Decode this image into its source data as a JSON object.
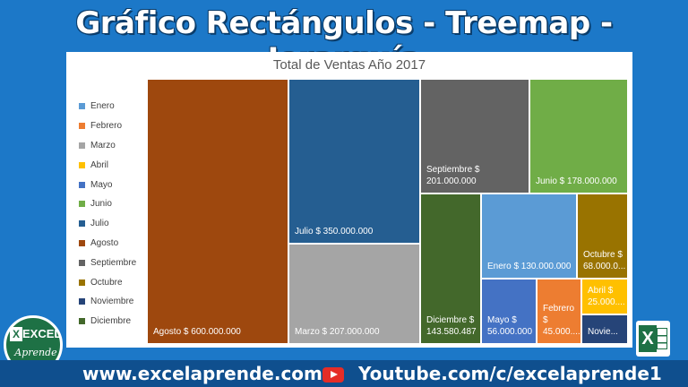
{
  "banner": {
    "title": "Gráfico Rectángulos - Treemap - Jerarquía"
  },
  "footer": {
    "website": "www.excelaprende.com",
    "youtube": "Youtube.com/c/excelaprende1"
  },
  "logos": {
    "left_line1": "EXCEL",
    "left_line2": "Aprende",
    "left_x": "X",
    "right_x": "X"
  },
  "colors": {
    "page_background": "#1c78c8",
    "footer_background": "#0f4f8e",
    "excel_green": "#1e7145",
    "youtube_red": "#e52d27"
  },
  "chart_data": {
    "type": "treemap",
    "title": "Total de Ventas Año 2017",
    "legend_position": "left",
    "legend": [
      {
        "name": "Enero",
        "color": "#5b9bd5"
      },
      {
        "name": "Febrero",
        "color": "#ed7d31"
      },
      {
        "name": "Marzo",
        "color": "#a5a5a5"
      },
      {
        "name": "Abril",
        "color": "#ffc000"
      },
      {
        "name": "Mayo",
        "color": "#4472c4"
      },
      {
        "name": "Junio",
        "color": "#70ad47"
      },
      {
        "name": "Julio",
        "color": "#255e91"
      },
      {
        "name": "Agosto",
        "color": "#9e480e"
      },
      {
        "name": "Septiembre",
        "color": "#636363"
      },
      {
        "name": "Octubre",
        "color": "#997300"
      },
      {
        "name": "Noviembre",
        "color": "#264478"
      },
      {
        "name": "Diciembre",
        "color": "#43682b"
      }
    ],
    "data": [
      {
        "name": "Agosto",
        "value": 600000000,
        "label": "Agosto $ 600.000.000"
      },
      {
        "name": "Julio",
        "value": 350000000,
        "label": "Julio $ 350.000.000"
      },
      {
        "name": "Marzo",
        "value": 207000000,
        "label": "Marzo $ 207.000.000"
      },
      {
        "name": "Septiembre",
        "value": 201000000,
        "label": "Septiembre $\n201.000.000"
      },
      {
        "name": "Junio",
        "value": 178000000,
        "label": "Junio $ 178.000.000"
      },
      {
        "name": "Diciembre",
        "value": 143580487,
        "label": "Diciembre $\n143.580.487"
      },
      {
        "name": "Enero",
        "value": 130000000,
        "label": "Enero $ 130.000.000"
      },
      {
        "name": "Octubre",
        "value": 68000000,
        "label": "Octubre $\n68.000.0..."
      },
      {
        "name": "Mayo",
        "value": 56000000,
        "label": "Mayo $\n56.000.000"
      },
      {
        "name": "Febrero",
        "value": 45000000,
        "label": "Febrero\n$\n45.000...."
      },
      {
        "name": "Abril",
        "value": 25000000,
        "label": "Abril $\n25.000...."
      },
      {
        "name": "Noviembre",
        "value": null,
        "label": "Novie..."
      }
    ]
  }
}
